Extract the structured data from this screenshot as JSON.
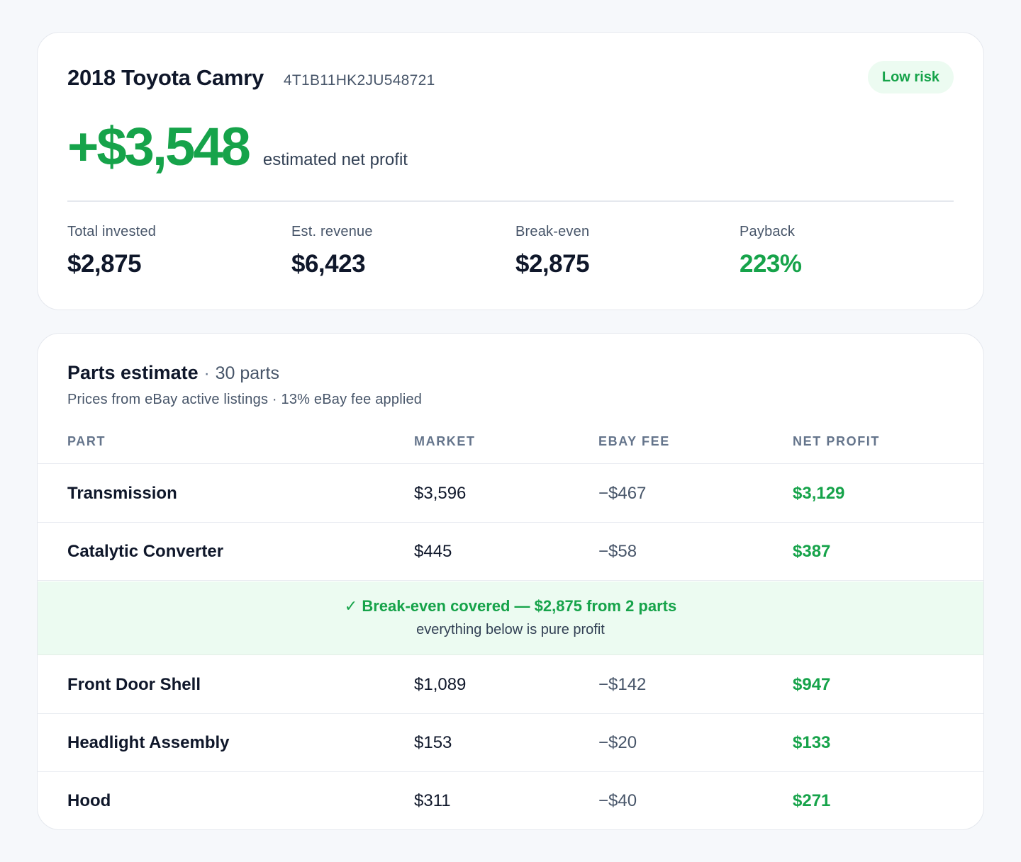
{
  "summary": {
    "vehicle_title": "2018 Toyota Camry",
    "vin": "4T1B11HK2JU548721",
    "risk_badge": "Low risk",
    "net_profit": "+$3,548",
    "net_profit_label": "estimated net profit",
    "stats": [
      {
        "label": "Total invested",
        "value": "$2,875"
      },
      {
        "label": "Est. revenue",
        "value": "$6,423"
      },
      {
        "label": "Break-even",
        "value": "$2,875"
      },
      {
        "label": "Payback",
        "value": "223%"
      }
    ]
  },
  "parts": {
    "title": "Parts estimate",
    "separator": "·",
    "count": "30 parts",
    "subtitle": "Prices from eBay active listings · 13% eBay fee applied",
    "columns": {
      "part": "PART",
      "market": "MARKET",
      "fee": "EBAY FEE",
      "net": "NET PROFIT"
    },
    "rows": [
      {
        "name": "Transmission",
        "market": "$3,596",
        "fee": "−$467",
        "net": "$3,129"
      },
      {
        "name": "Catalytic Converter",
        "market": "$445",
        "fee": "−$58",
        "net": "$387"
      },
      {
        "name": "Front Door Shell",
        "market": "$1,089",
        "fee": "−$142",
        "net": "$947"
      },
      {
        "name": "Headlight Assembly",
        "market": "$153",
        "fee": "−$20",
        "net": "$133"
      },
      {
        "name": "Hood",
        "market": "$311",
        "fee": "−$40",
        "net": "$271"
      }
    ],
    "breakeven": {
      "headline": "✓ Break-even covered — $2,875 from 2 parts",
      "note": "everything below is pure profit"
    }
  },
  "colors": {
    "accent_green": "#16a34a",
    "badge_bg": "#ecfbf1",
    "text_dark": "#0f172a",
    "text_muted": "#475569"
  }
}
